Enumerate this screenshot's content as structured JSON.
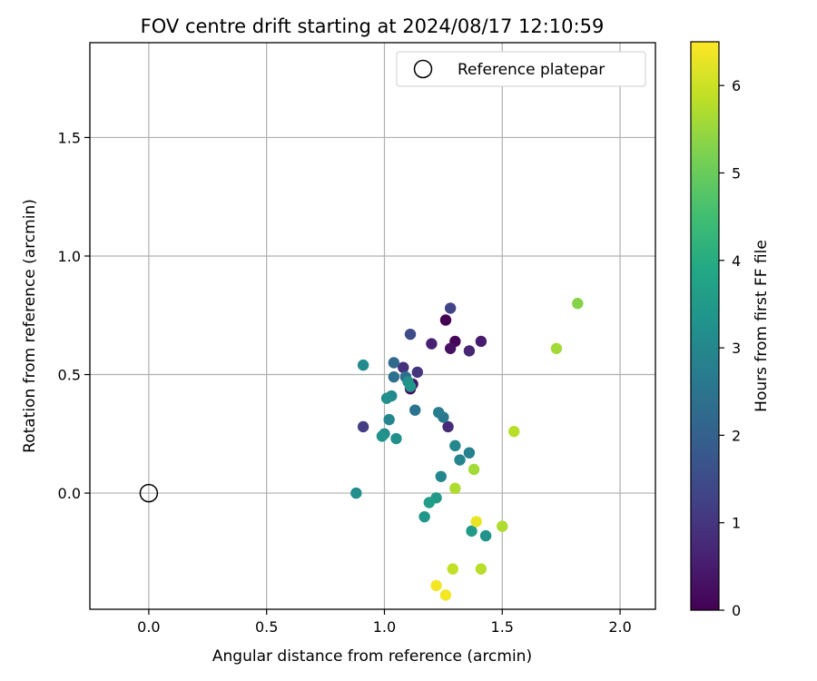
{
  "chart_data": {
    "type": "scatter",
    "title": "FOV centre drift starting at 2024/08/17 12:10:59",
    "xlabel": "Angular distance from reference (arcmin)",
    "ylabel": "Rotation from reference (arcmin)",
    "xlim": [
      -0.25,
      2.15
    ],
    "ylim": [
      -0.49,
      1.9
    ],
    "xticks": [
      "0.0",
      "0.5",
      "1.0",
      "1.5",
      "2.0"
    ],
    "yticks": [
      "0.0",
      "0.5",
      "1.0",
      "1.5"
    ],
    "grid": true,
    "legend": {
      "position": "top-right",
      "entries": [
        "Reference platepar"
      ]
    },
    "reference_point": {
      "label": "Reference platepar",
      "x": 0.0,
      "y": 0.0
    },
    "colorbar": {
      "label": "Hours from first FF file",
      "range": [
        0,
        6.5
      ],
      "ticks": [
        "0",
        "1",
        "2",
        "3",
        "4",
        "5",
        "6"
      ],
      "colormap": "viridis"
    },
    "points": [
      {
        "x": 1.26,
        "y": 0.73,
        "t": 0.0
      },
      {
        "x": 1.3,
        "y": 0.64,
        "t": 0.1
      },
      {
        "x": 1.28,
        "y": 0.61,
        "t": 0.3
      },
      {
        "x": 1.41,
        "y": 0.64,
        "t": 0.5
      },
      {
        "x": 1.2,
        "y": 0.63,
        "t": 0.6
      },
      {
        "x": 1.36,
        "y": 0.6,
        "t": 0.7
      },
      {
        "x": 1.11,
        "y": 0.44,
        "t": 0.2
      },
      {
        "x": 1.12,
        "y": 0.46,
        "t": 0.4
      },
      {
        "x": 1.27,
        "y": 0.28,
        "t": 0.8
      },
      {
        "x": 1.08,
        "y": 0.53,
        "t": 0.9
      },
      {
        "x": 1.14,
        "y": 0.51,
        "t": 1.0
      },
      {
        "x": 0.91,
        "y": 0.28,
        "t": 1.2
      },
      {
        "x": 1.28,
        "y": 0.78,
        "t": 1.3
      },
      {
        "x": 1.11,
        "y": 0.67,
        "t": 1.5
      },
      {
        "x": 1.04,
        "y": 0.55,
        "t": 2.2
      },
      {
        "x": 1.04,
        "y": 0.49,
        "t": 2.4
      },
      {
        "x": 1.09,
        "y": 0.49,
        "t": 2.3
      },
      {
        "x": 1.13,
        "y": 0.35,
        "t": 2.5
      },
      {
        "x": 1.25,
        "y": 0.32,
        "t": 2.6
      },
      {
        "x": 1.23,
        "y": 0.34,
        "t": 2.7
      },
      {
        "x": 1.03,
        "y": 0.41,
        "t": 3.0
      },
      {
        "x": 1.02,
        "y": 0.31,
        "t": 3.0
      },
      {
        "x": 1.01,
        "y": 0.4,
        "t": 3.2
      },
      {
        "x": 1.0,
        "y": 0.25,
        "t": 3.1
      },
      {
        "x": 0.99,
        "y": 0.24,
        "t": 3.3
      },
      {
        "x": 1.05,
        "y": 0.23,
        "t": 3.2
      },
      {
        "x": 1.1,
        "y": 0.47,
        "t": 3.3
      },
      {
        "x": 1.11,
        "y": 0.45,
        "t": 3.4
      },
      {
        "x": 0.91,
        "y": 0.54,
        "t": 3.1
      },
      {
        "x": 1.3,
        "y": 0.2,
        "t": 3.0
      },
      {
        "x": 1.32,
        "y": 0.14,
        "t": 2.9
      },
      {
        "x": 1.36,
        "y": 0.17,
        "t": 2.8
      },
      {
        "x": 1.24,
        "y": 0.07,
        "t": 3.0
      },
      {
        "x": 0.88,
        "y": 0.0,
        "t": 3.2
      },
      {
        "x": 1.22,
        "y": -0.02,
        "t": 3.5
      },
      {
        "x": 1.19,
        "y": -0.04,
        "t": 3.6
      },
      {
        "x": 1.17,
        "y": -0.1,
        "t": 3.4
      },
      {
        "x": 1.37,
        "y": -0.16,
        "t": 3.5
      },
      {
        "x": 1.43,
        "y": -0.18,
        "t": 3.3
      },
      {
        "x": 1.38,
        "y": 0.1,
        "t": 5.6
      },
      {
        "x": 1.3,
        "y": 0.02,
        "t": 5.7
      },
      {
        "x": 1.55,
        "y": 0.26,
        "t": 5.8
      },
      {
        "x": 1.5,
        "y": -0.14,
        "t": 5.7
      },
      {
        "x": 1.39,
        "y": -0.12,
        "t": 6.3
      },
      {
        "x": 1.29,
        "y": -0.32,
        "t": 5.9
      },
      {
        "x": 1.41,
        "y": -0.32,
        "t": 5.8
      },
      {
        "x": 1.22,
        "y": -0.39,
        "t": 6.4
      },
      {
        "x": 1.26,
        "y": -0.43,
        "t": 6.4
      },
      {
        "x": 1.73,
        "y": 0.61,
        "t": 5.6
      },
      {
        "x": 1.82,
        "y": 0.8,
        "t": 5.3
      }
    ]
  }
}
